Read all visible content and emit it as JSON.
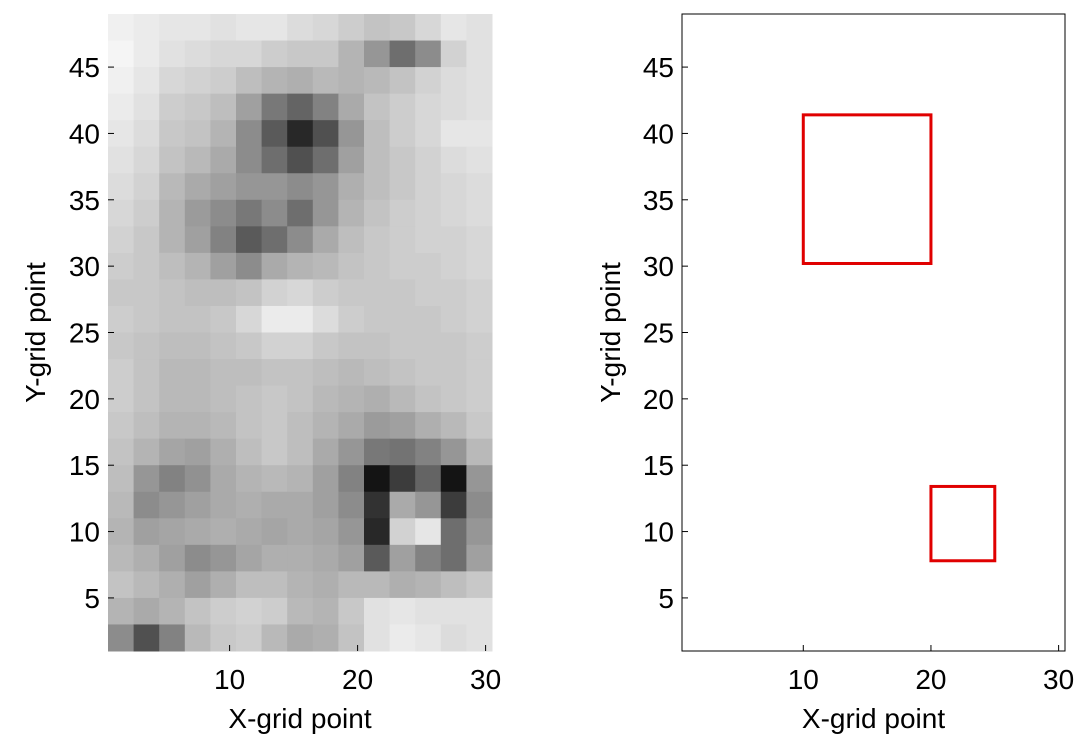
{
  "chart_data": [
    {
      "type": "heatmap",
      "xlabel": "X-grid point",
      "ylabel": "Y-grid point",
      "xlim": [
        0.5,
        30.5
      ],
      "ylim": [
        1,
        49
      ],
      "xticks": [
        10,
        20,
        30
      ],
      "yticks": [
        5,
        10,
        15,
        20,
        25,
        30,
        35,
        40,
        45
      ],
      "values": [
        [
          240,
          235,
          230,
          230,
          225,
          230,
          230,
          220,
          215,
          205,
          195,
          200,
          215,
          230,
          225
        ],
        [
          245,
          235,
          225,
          220,
          215,
          215,
          205,
          200,
          200,
          180,
          150,
          110,
          140,
          210,
          225
        ],
        [
          240,
          230,
          215,
          210,
          205,
          190,
          180,
          175,
          185,
          180,
          185,
          195,
          210,
          220,
          225
        ],
        [
          235,
          225,
          205,
          200,
          190,
          160,
          120,
          100,
          130,
          170,
          195,
          205,
          215,
          220,
          225
        ],
        [
          230,
          220,
          200,
          195,
          180,
          140,
          90,
          40,
          80,
          150,
          190,
          205,
          215,
          230,
          230
        ],
        [
          225,
          215,
          195,
          185,
          170,
          140,
          110,
          80,
          110,
          160,
          190,
          200,
          210,
          220,
          225
        ],
        [
          220,
          210,
          185,
          170,
          160,
          150,
          150,
          140,
          150,
          175,
          190,
          200,
          210,
          215,
          220
        ],
        [
          215,
          205,
          180,
          155,
          140,
          120,
          140,
          110,
          150,
          180,
          195,
          205,
          210,
          215,
          220
        ],
        [
          210,
          200,
          180,
          160,
          130,
          90,
          110,
          140,
          170,
          190,
          200,
          205,
          210,
          210,
          215
        ],
        [
          205,
          200,
          190,
          180,
          160,
          140,
          170,
          180,
          185,
          195,
          200,
          205,
          205,
          210,
          215
        ],
        [
          200,
          200,
          195,
          190,
          190,
          195,
          210,
          215,
          205,
          200,
          200,
          200,
          205,
          205,
          210
        ],
        [
          205,
          200,
          195,
          195,
          200,
          215,
          235,
          235,
          220,
          205,
          200,
          200,
          200,
          205,
          210
        ],
        [
          200,
          195,
          190,
          190,
          195,
          200,
          210,
          210,
          200,
          195,
          195,
          200,
          200,
          200,
          205
        ],
        [
          205,
          195,
          185,
          185,
          190,
          190,
          195,
          195,
          190,
          185,
          190,
          195,
          200,
          200,
          205
        ],
        [
          205,
          195,
          185,
          185,
          190,
          195,
          200,
          195,
          185,
          180,
          175,
          185,
          195,
          200,
          205
        ],
        [
          200,
          190,
          180,
          180,
          185,
          195,
          200,
          190,
          180,
          170,
          155,
          160,
          175,
          185,
          200
        ],
        [
          195,
          180,
          165,
          160,
          175,
          190,
          200,
          190,
          170,
          150,
          120,
          115,
          130,
          150,
          185
        ],
        [
          190,
          150,
          130,
          145,
          170,
          180,
          185,
          180,
          160,
          130,
          20,
          60,
          100,
          20,
          150
        ],
        [
          185,
          140,
          150,
          160,
          170,
          175,
          170,
          170,
          160,
          140,
          50,
          170,
          150,
          60,
          140
        ],
        [
          180,
          160,
          165,
          170,
          175,
          170,
          165,
          170,
          165,
          150,
          40,
          210,
          230,
          110,
          150
        ],
        [
          185,
          175,
          160,
          140,
          150,
          165,
          175,
          175,
          170,
          160,
          90,
          160,
          130,
          110,
          160
        ],
        [
          195,
          185,
          175,
          160,
          175,
          190,
          190,
          180,
          175,
          185,
          185,
          175,
          180,
          190,
          200
        ],
        [
          180,
          170,
          180,
          195,
          205,
          210,
          205,
          185,
          180,
          200,
          225,
          230,
          225,
          225,
          225
        ],
        [
          140,
          80,
          130,
          185,
          200,
          205,
          185,
          170,
          175,
          195,
          225,
          235,
          230,
          220,
          225
        ]
      ]
    },
    {
      "type": "rectangles",
      "xlabel": "X-grid point",
      "ylabel": "Y-grid point",
      "xlim": [
        0.5,
        30.5
      ],
      "ylim": [
        1,
        49
      ],
      "xticks": [
        10,
        20,
        30
      ],
      "yticks": [
        5,
        10,
        15,
        20,
        25,
        30,
        35,
        40,
        45
      ],
      "color": "#e00000",
      "shapes": [
        {
          "x": [
            10,
            20
          ],
          "y": [
            30.2,
            41.4
          ]
        },
        {
          "x": [
            20,
            25
          ],
          "y": [
            7.8,
            13.4
          ]
        }
      ]
    }
  ]
}
